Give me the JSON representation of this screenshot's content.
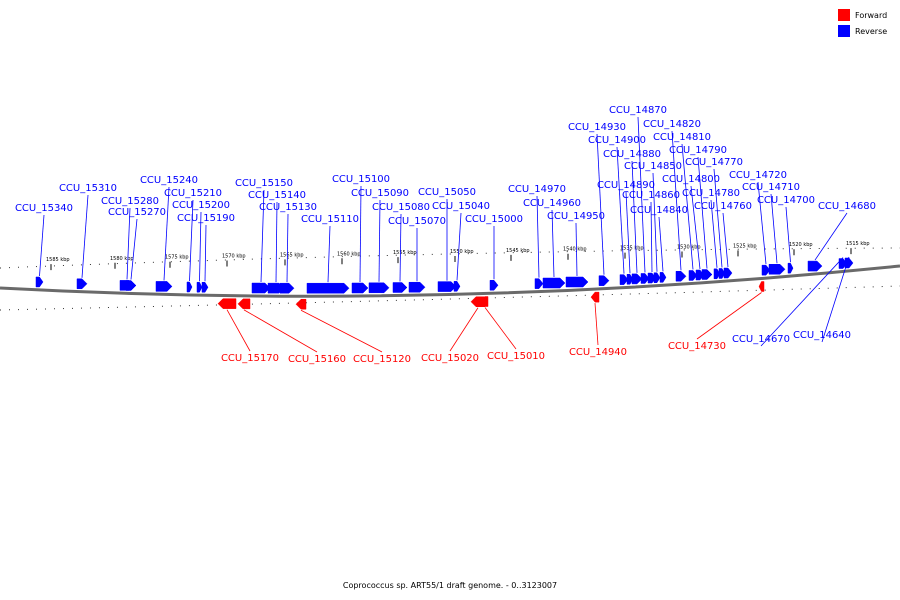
{
  "legend": {
    "forward_label": "Forward",
    "reverse_label": "Reverse",
    "forward_color": "#ff0000",
    "reverse_color": "#0000ff"
  },
  "caption": "Coprococcus sp. ART55/1 draft genome. - 0..3123007",
  "scale_labels": [
    "1585 kbp",
    "1580 kbp",
    "1575 kbp",
    "1570 kbp",
    "1565 kbp",
    "1560 kbp",
    "1555 kbp",
    "1550 kbp",
    "1545 kbp",
    "1540 kbp",
    "1535 kbp",
    "1530 kbp",
    "1525 kbp",
    "1520 kbp",
    "1515 kbp"
  ],
  "reverse_genes": [
    "CCU_15340",
    "CCU_15310",
    "CCU_15280",
    "CCU_15270",
    "CCU_15240",
    "CCU_15210",
    "CCU_15200",
    "CCU_15190",
    "CCU_15150",
    "CCU_15140",
    "CCU_15130",
    "CCU_15110",
    "CCU_15100",
    "CCU_15090",
    "CCU_15080",
    "CCU_15070",
    "CCU_15050",
    "CCU_15040",
    "CCU_15000",
    "CCU_14970",
    "CCU_14960",
    "CCU_14950",
    "CCU_14930",
    "CCU_14900",
    "CCU_14890",
    "CCU_14880",
    "CCU_14870",
    "CCU_14860",
    "CCU_14850",
    "CCU_14840",
    "CCU_14820",
    "CCU_14810",
    "CCU_14800",
    "CCU_14790",
    "CCU_14780",
    "CCU_14770",
    "CCU_14760",
    "CCU_14720",
    "CCU_14710",
    "CCU_14700",
    "CCU_14680",
    "CCU_14670",
    "CCU_14640"
  ],
  "forward_genes": [
    "CCU_15170",
    "CCU_15160",
    "CCU_15120",
    "CCU_15020",
    "CCU_15010",
    "CCU_14940",
    "CCU_14730"
  ]
}
